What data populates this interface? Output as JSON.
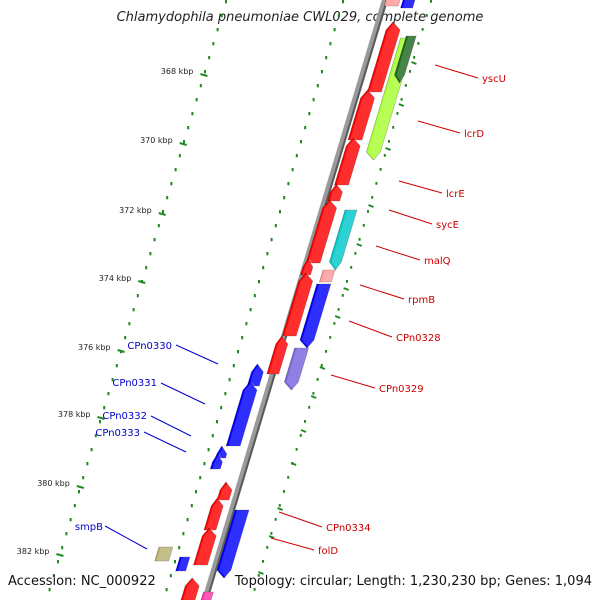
{
  "title": "Chlamydophila pneumoniae CWL029, complete genome",
  "footer": {
    "accession": "Accession: NC_000922",
    "summary": "Topology: circular; Length: 1,230,230 bp; Genes: 1,094"
  },
  "colors": {
    "backbone": "#808080",
    "tick": "#1f8a1f",
    "label_red": "#cc0000",
    "label_blue": "#0000cc",
    "red": "#ff0000",
    "blue": "#0000ff"
  },
  "ticks": [
    {
      "label": "368 kbp"
    },
    {
      "label": "370 kbp"
    },
    {
      "label": "372 kbp"
    },
    {
      "label": "374 kbp"
    },
    {
      "label": "376 kbp"
    },
    {
      "label": "378 kbp"
    },
    {
      "label": "380 kbp"
    },
    {
      "label": "382 kbp"
    }
  ],
  "gene_labels_right": [
    {
      "name": "yscU"
    },
    {
      "name": "lcrD"
    },
    {
      "name": "lcrE"
    },
    {
      "name": "sycE"
    },
    {
      "name": "malQ"
    },
    {
      "name": "rpmB"
    },
    {
      "name": "CPn0328"
    },
    {
      "name": "CPn0329"
    },
    {
      "name": "CPn0334"
    },
    {
      "name": "folD"
    }
  ],
  "gene_labels_left": [
    {
      "name": "CPn0330"
    },
    {
      "name": "CPn0331"
    },
    {
      "name": "CPn0332"
    },
    {
      "name": "CPn0333"
    },
    {
      "name": "smpB"
    }
  ]
}
